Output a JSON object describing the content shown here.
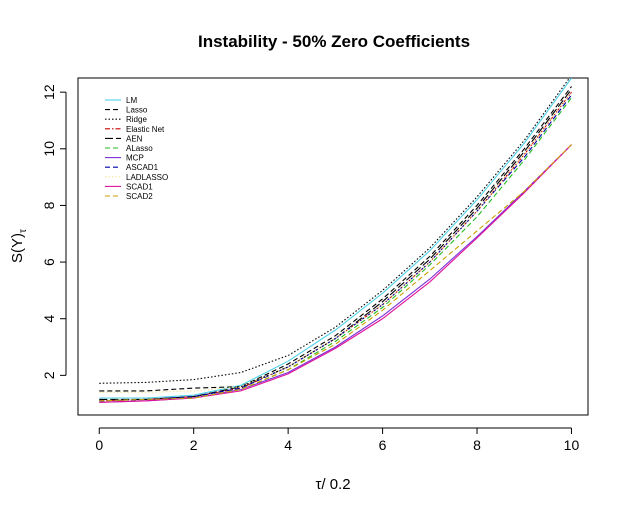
{
  "chart_data": {
    "type": "line",
    "title": "Instability - 50% Zero Coefficients",
    "xlabel": "τ/ 0.2",
    "ylabel_main": "S(Y)",
    "ylabel_sub": "τ",
    "xlim": [
      -0.45,
      10.35
    ],
    "ylim": [
      0.6,
      12.5
    ],
    "xticks": [
      0,
      2,
      4,
      6,
      8,
      10
    ],
    "yticks": [
      2,
      4,
      6,
      8,
      10,
      12
    ],
    "x": [
      0,
      1,
      2,
      3,
      4,
      5,
      6,
      7,
      8,
      9,
      10
    ],
    "legend_position": "top-left",
    "series": [
      {
        "name": "LM",
        "color": "#4fd1e8",
        "dash": "solid",
        "values": [
          1.2,
          1.2,
          1.3,
          1.65,
          2.5,
          3.6,
          4.9,
          6.4,
          8.2,
          10.2,
          12.5
        ]
      },
      {
        "name": "Lasso",
        "color": "#000000",
        "dash": "dashed",
        "values": [
          1.45,
          1.45,
          1.55,
          1.6,
          2.4,
          3.4,
          4.7,
          6.2,
          8.0,
          10.0,
          12.2
        ]
      },
      {
        "name": "Ridge",
        "color": "#000000",
        "dash": "dotted",
        "values": [
          1.72,
          1.75,
          1.85,
          2.1,
          2.7,
          3.7,
          5.0,
          6.5,
          8.3,
          10.3,
          12.6
        ]
      },
      {
        "name": "Elastic Net",
        "color": "#cc0000",
        "dash": "dashdot",
        "values": [
          1.1,
          1.15,
          1.25,
          1.55,
          2.3,
          3.3,
          4.5,
          6.0,
          7.8,
          9.8,
          12.0
        ]
      },
      {
        "name": "AEN",
        "color": "#000000",
        "dash": "longdash",
        "values": [
          1.15,
          1.15,
          1.25,
          1.6,
          2.3,
          3.3,
          4.6,
          6.1,
          7.9,
          9.9,
          12.1
        ]
      },
      {
        "name": "ALasso",
        "color": "#22bb22",
        "dash": "dashed",
        "values": [
          1.1,
          1.15,
          1.2,
          1.5,
          2.2,
          3.2,
          4.4,
          5.9,
          7.6,
          9.6,
          11.8
        ]
      },
      {
        "name": "MCP",
        "color": "#7b2fd6",
        "dash": "solid",
        "values": [
          1.05,
          1.1,
          1.2,
          1.5,
          2.1,
          3.0,
          4.1,
          5.4,
          6.9,
          8.5,
          10.15
        ]
      },
      {
        "name": "ASCAD1",
        "color": "#0000aa",
        "dash": "dashed",
        "values": [
          1.1,
          1.15,
          1.25,
          1.55,
          2.3,
          3.3,
          4.5,
          6.0,
          7.8,
          9.7,
          11.9
        ]
      },
      {
        "name": "LADLASSO",
        "color": "#f2e79a",
        "dash": "dotted",
        "values": [
          1.4,
          1.4,
          1.45,
          1.6,
          2.3,
          3.3,
          4.5,
          6.0,
          7.8,
          9.8,
          12.0
        ]
      },
      {
        "name": "SCAD1",
        "color": "#e0109a",
        "dash": "solid",
        "values": [
          1.05,
          1.1,
          1.2,
          1.45,
          2.05,
          2.95,
          4.0,
          5.3,
          6.85,
          8.45,
          10.15
        ]
      },
      {
        "name": "SCAD2",
        "color": "#c8a000",
        "dash": "dashed",
        "values": [
          1.1,
          1.15,
          1.2,
          1.5,
          2.2,
          3.1,
          4.3,
          5.7,
          7.1,
          8.5,
          10.15
        ]
      }
    ]
  }
}
